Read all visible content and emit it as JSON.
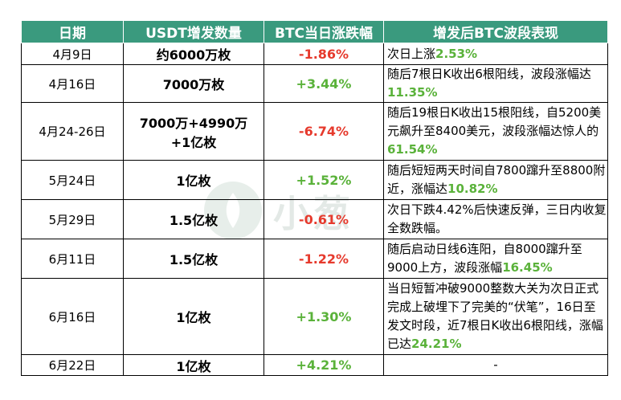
{
  "headers": [
    "日期",
    "USDT增发数量",
    "BTC当日涨跌幅",
    "增发后BTC波段表现"
  ],
  "watermark": "小葱",
  "colors": {
    "header_bg": "#3a9a7e",
    "negative": "#e63a2d",
    "positive": "#5ab23a"
  },
  "rows": [
    {
      "date": "4月9日",
      "usdt": [
        "约6000万枚"
      ],
      "btc": "-1.86%",
      "dir": "neg",
      "desc": [
        "次日上涨",
        {
          "hl": "2.53%"
        }
      ]
    },
    {
      "date": "4月16日",
      "usdt": [
        "7000万枚"
      ],
      "btc": "+3.44%",
      "dir": "pos",
      "desc": [
        "随后7根日K收出6根阳线，波段涨幅达",
        {
          "hl": "11.35%"
        }
      ]
    },
    {
      "date": "4月24-26日",
      "usdt": [
        "7000万+4990万",
        "+1亿枚"
      ],
      "btc": "-6.74%",
      "dir": "neg",
      "desc": [
        "随后19根日K收出15根阳线，自5200美元飙升至8400美元，波段涨幅达惊人的",
        {
          "hl": "61.54%"
        }
      ]
    },
    {
      "date": "5月24日",
      "usdt": [
        "1亿枚"
      ],
      "btc": "+1.52%",
      "dir": "pos",
      "desc": [
        "随后短短两天时间自7800蹿升至8800附近，涨幅达",
        {
          "hl": "10.82%"
        }
      ]
    },
    {
      "date": "5月29日",
      "usdt": [
        "1.5亿枚"
      ],
      "btc": "-0.61%",
      "dir": "neg",
      "desc": [
        "次日下跌4.42%后快速反弹，三日内收复全数跌幅。"
      ]
    },
    {
      "date": "6月11日",
      "usdt": [
        "1.5亿枚"
      ],
      "btc": "-1.22%",
      "dir": "neg",
      "desc": [
        "随后启动日线6连阳，自8000蹿升至9000上方，波段涨幅",
        {
          "hl": "16.45%"
        }
      ]
    },
    {
      "date": "6月16日",
      "usdt": [
        "1亿枚"
      ],
      "btc": "+1.30%",
      "dir": "pos",
      "desc": [
        "当日短暂冲破9000整数大关为次日正式完成上破埋下了完美的“伏笔”，16日至发文时段，近7根日K收出6根阳线，涨幅已达",
        {
          "hl": "24.21%"
        }
      ]
    },
    {
      "date": "6月22日",
      "usdt": [
        "1亿枚"
      ],
      "btc": "+4.21%",
      "dir": "pos",
      "desc": [
        "-"
      ]
    }
  ]
}
